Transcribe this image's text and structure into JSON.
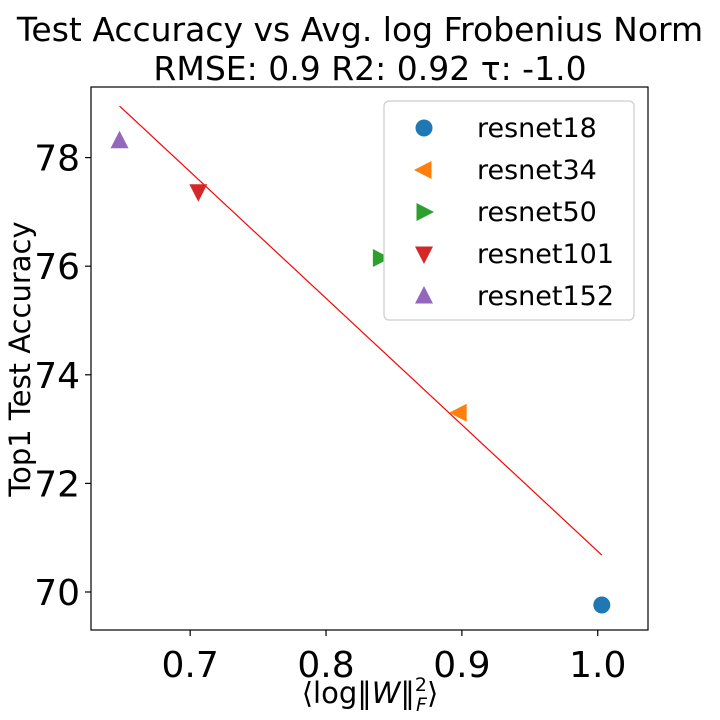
{
  "chart_data": {
    "type": "scatter",
    "title": "Test Accuracy vs Avg. log Frobenius Norm",
    "subtitle": "RMSE: 0.9 R2: 0.92 τ: -1.0",
    "xlabel": "⟨log‖W‖²F⟩",
    "ylabel": "Top1 Test Accuracy",
    "xlim": [
      0.627,
      1.037
    ],
    "ylim": [
      69.3,
      79.3
    ],
    "xticks": [
      0.7,
      0.8,
      0.9,
      1.0
    ],
    "xtick_labels": [
      "0.7",
      "0.8",
      "0.9",
      "1.0"
    ],
    "yticks": [
      70,
      72,
      74,
      76,
      78
    ],
    "ytick_labels": [
      "70",
      "72",
      "74",
      "76",
      "78"
    ],
    "grid": false,
    "legend_position": "top-right",
    "series": [
      {
        "name": "resnet18",
        "marker": "circle",
        "color": "#1f77b4",
        "x": [
          1.003
        ],
        "y": [
          69.76
        ]
      },
      {
        "name": "resnet34",
        "marker": "triangle-left",
        "color": "#ff7f0e",
        "x": [
          0.898
        ],
        "y": [
          73.3
        ]
      },
      {
        "name": "resnet50",
        "marker": "triangle-right",
        "color": "#2ca02c",
        "x": [
          0.84
        ],
        "y": [
          76.15
        ]
      },
      {
        "name": "resnet101",
        "marker": "triangle-down",
        "color": "#d62728",
        "x": [
          0.706
        ],
        "y": [
          77.37
        ]
      },
      {
        "name": "resnet152",
        "marker": "triangle-up",
        "color": "#9467bd",
        "x": [
          0.648
        ],
        "y": [
          78.31
        ]
      }
    ],
    "fit_line": {
      "color": "#ff0000",
      "x": [
        0.648,
        1.003
      ],
      "y": [
        78.95,
        70.68
      ]
    }
  }
}
